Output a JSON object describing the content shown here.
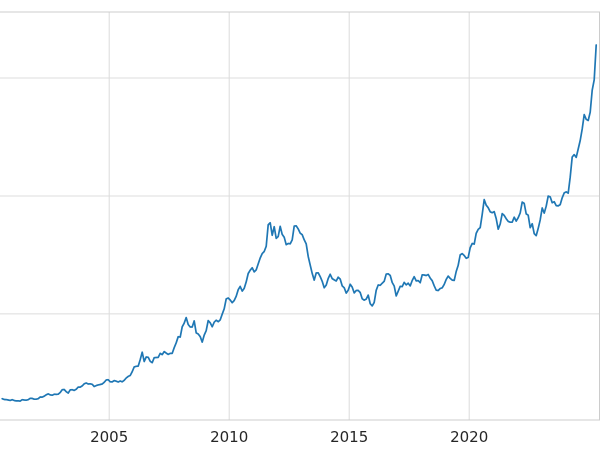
{
  "figure": {
    "background": "#ffffff",
    "line_color": "#1f77b4",
    "grid_color": "#dcdcdc",
    "spine_color": "#cccccc",
    "tick_label_color": "#262626"
  },
  "chart_data": {
    "type": "line",
    "title": "",
    "xlabel": "",
    "ylabel": "",
    "legend": "none",
    "grid": true,
    "y_tick_labels_visible": false,
    "xlim": [
      2000.45,
      2025.45
    ],
    "ylim": [
      100,
      3560
    ],
    "x_tick_values": [
      2005,
      2010,
      2015,
      2020
    ],
    "x_tick_labels": [
      "2005",
      "2010",
      "2015",
      "2020"
    ],
    "y_gridline_values": [
      1000,
      2000,
      3000
    ],
    "x_start": 2000.5417,
    "x_step": 0.0833333,
    "values": [
      281,
      274,
      273,
      270,
      266,
      272,
      265,
      262,
      263,
      260,
      272,
      270,
      268,
      272,
      284,
      283,
      276,
      276,
      281,
      295,
      294,
      302,
      314,
      321,
      313,
      310,
      319,
      317,
      319,
      333,
      357,
      359,
      340,
      328,
      355,
      357,
      351,
      360,
      379,
      379,
      389,
      407,
      414,
      405,
      407,
      403,
      384,
      392,
      398,
      401,
      405,
      420,
      439,
      442,
      424,
      423,
      434,
      429,
      422,
      431,
      424,
      437,
      456,
      470,
      477,
      510,
      550,
      555,
      557,
      611,
      675,
      596,
      634,
      632,
      598,
      586,
      628,
      630,
      631,
      665,
      655,
      680,
      667,
      656,
      665,
      665,
      713,
      755,
      806,
      803,
      890,
      922,
      968,
      910,
      889,
      889,
      940,
      839,
      829,
      807,
      761,
      820,
      858,
      943,
      924,
      890,
      929,
      946,
      934,
      949,
      997,
      1043,
      1127,
      1135,
      1118,
      1095,
      1113,
      1149,
      1205,
      1233,
      1193,
      1216,
      1271,
      1342,
      1370,
      1391,
      1356,
      1373,
      1424,
      1474,
      1511,
      1529,
      1573,
      1756,
      1772,
      1666,
      1739,
      1640,
      1656,
      1743,
      1674,
      1650,
      1587,
      1597,
      1594,
      1627,
      1744,
      1747,
      1721,
      1684,
      1671,
      1628,
      1593,
      1487,
      1414,
      1343,
      1286,
      1347,
      1348,
      1316,
      1276,
      1221,
      1244,
      1300,
      1336,
      1299,
      1288,
      1279,
      1311,
      1295,
      1237,
      1222,
      1176,
      1201,
      1251,
      1227,
      1178,
      1198,
      1199,
      1181,
      1128,
      1117,
      1125,
      1159,
      1086,
      1068,
      1097,
      1200,
      1245,
      1242,
      1260,
      1276,
      1337,
      1340,
      1326,
      1266,
      1236,
      1152,
      1192,
      1234,
      1231,
      1267,
      1246,
      1260,
      1237,
      1283,
      1315,
      1280,
      1282,
      1264,
      1331,
      1330,
      1325,
      1334,
      1303,
      1281,
      1238,
      1201,
      1198,
      1215,
      1221,
      1250,
      1292,
      1320,
      1301,
      1286,
      1284,
      1359,
      1413,
      1500,
      1511,
      1495,
      1471,
      1479,
      1561,
      1597,
      1592,
      1683,
      1716,
      1732,
      1843,
      1969,
      1922,
      1900,
      1866,
      1858,
      1867,
      1808,
      1718,
      1762,
      1850,
      1835,
      1807,
      1784,
      1777,
      1777,
      1820,
      1787,
      1816,
      1856,
      1948,
      1937,
      1848,
      1837,
      1731,
      1765,
      1681,
      1664,
      1725,
      1797,
      1898,
      1855,
      1913,
      1999,
      1992,
      1943,
      1951,
      1918,
      1916,
      1927,
      1984,
      2026,
      2034,
      2023,
      2160,
      2330,
      2351,
      2327,
      2398,
      2470,
      2568,
      2690,
      2650,
      2640,
      2710,
      2897,
      2985,
      3280
    ]
  }
}
